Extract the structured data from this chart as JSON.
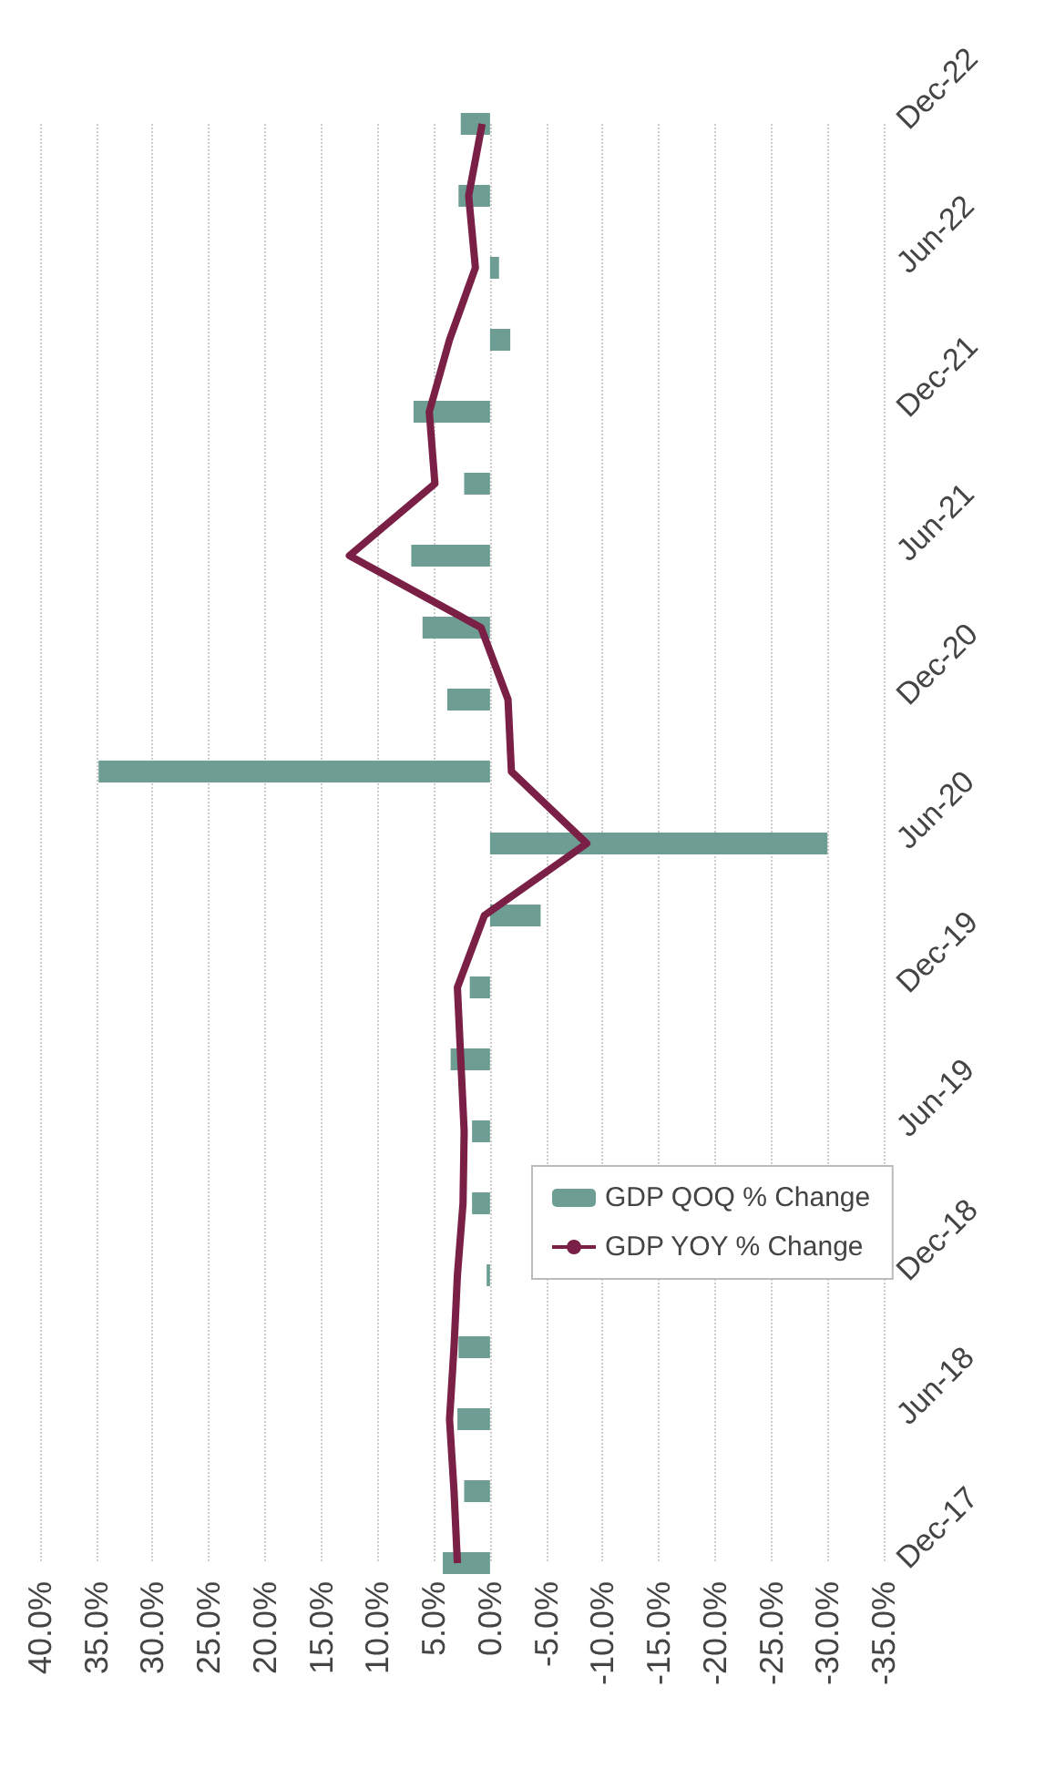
{
  "chart_data": {
    "type": "bar",
    "orientation": "horizontal",
    "categories": [
      "Dec-22",
      null,
      "Jun-22",
      null,
      "Dec-21",
      null,
      "Jun-21",
      null,
      "Dec-20",
      null,
      "Jun-20",
      null,
      "Dec-19",
      null,
      "Jun-19",
      null,
      "Dec-18",
      null,
      "Jun-18",
      null,
      "Dec-17"
    ],
    "series": [
      {
        "name": "GDP QOQ % Change",
        "color": "#6e9e93",
        "values": [
          2.6,
          2.8,
          -0.8,
          -1.8,
          6.8,
          2.3,
          7.0,
          6.0,
          3.8,
          34.8,
          -30.0,
          -4.5,
          1.8,
          3.5,
          1.6,
          1.6,
          0.3,
          2.8,
          2.9,
          2.3,
          4.2
        ]
      },
      {
        "name": "GDP YOY % Change",
        "type": "line",
        "color": "#7a1f45",
        "values": [
          0.7,
          1.9,
          1.3,
          3.6,
          5.4,
          4.9,
          12.5,
          0.8,
          -1.6,
          -1.9,
          -8.6,
          0.5,
          2.9,
          2.6,
          2.3,
          2.4,
          2.9,
          3.2,
          3.6,
          3.2,
          2.9
        ]
      }
    ],
    "xlim": [
      40,
      -35
    ],
    "xticks": [
      {
        "value": 40,
        "label": "40.0%"
      },
      {
        "value": 35,
        "label": "35.0%"
      },
      {
        "value": 30,
        "label": "30.0%"
      },
      {
        "value": 25,
        "label": "25.0%"
      },
      {
        "value": 20,
        "label": "20.0%"
      },
      {
        "value": 15,
        "label": "15.0%"
      },
      {
        "value": 10,
        "label": "10.0%"
      },
      {
        "value": 5,
        "label": "5.0%"
      },
      {
        "value": 0,
        "label": "0.0%"
      },
      {
        "value": -5,
        "label": "-5.0%"
      },
      {
        "value": -10,
        "label": "-10.0%"
      },
      {
        "value": -15,
        "label": "-15.0%"
      },
      {
        "value": -20,
        "label": "-20.0%"
      },
      {
        "value": -25,
        "label": "-25.0%"
      },
      {
        "value": -30,
        "label": "-30.0%"
      },
      {
        "value": -35,
        "label": "-35.0%"
      }
    ],
    "grid": "x",
    "legend": "bottom right",
    "marker": "none"
  }
}
